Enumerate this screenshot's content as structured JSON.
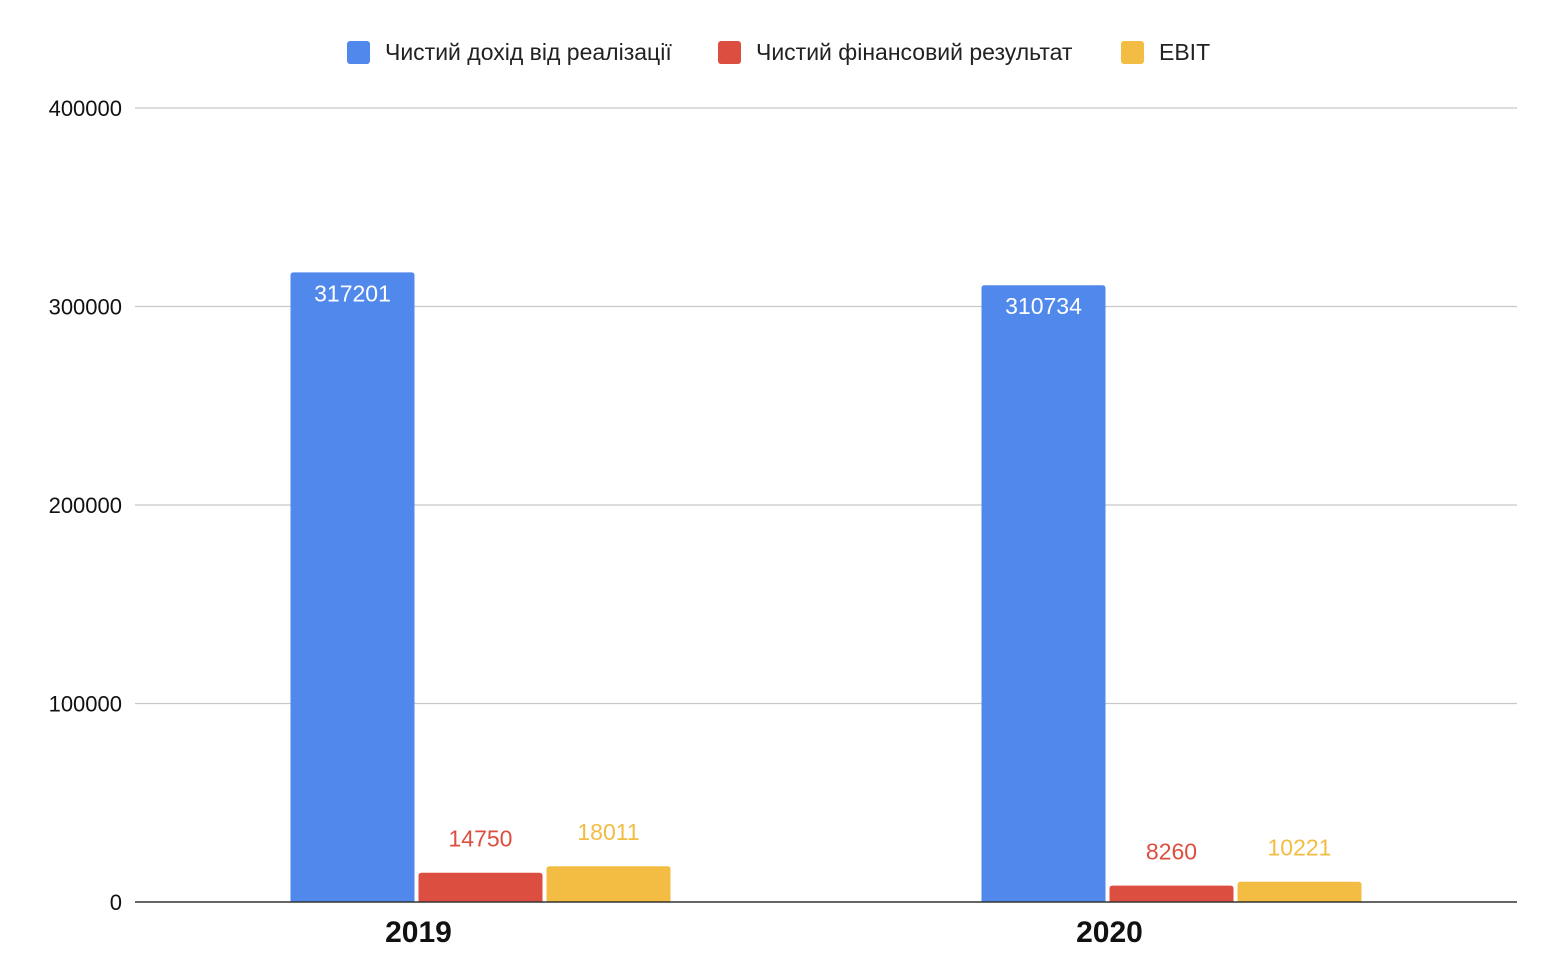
{
  "chart_data": {
    "type": "bar",
    "categories": [
      "2019",
      "2020"
    ],
    "series": [
      {
        "name": "Чистий дохід від реалізації",
        "color": "#5088EC",
        "values": [
          317201,
          310734
        ]
      },
      {
        "name": "Чистий фінансовий результат",
        "color": "#DC4E3F",
        "values": [
          14750,
          8260
        ]
      },
      {
        "name": "EBIT",
        "color": "#F2BD42",
        "values": [
          18011,
          10221
        ]
      }
    ],
    "data_labels": [
      [
        "317201",
        "310734"
      ],
      [
        "14750",
        "8260"
      ],
      [
        "18011",
        "10221"
      ]
    ],
    "y_ticks": [
      "0",
      "100000",
      "200000",
      "300000",
      "400000"
    ],
    "ylim": [
      0,
      400000
    ],
    "legend_position": "top",
    "grid": true,
    "title": "",
    "xlabel": "",
    "ylabel": ""
  }
}
